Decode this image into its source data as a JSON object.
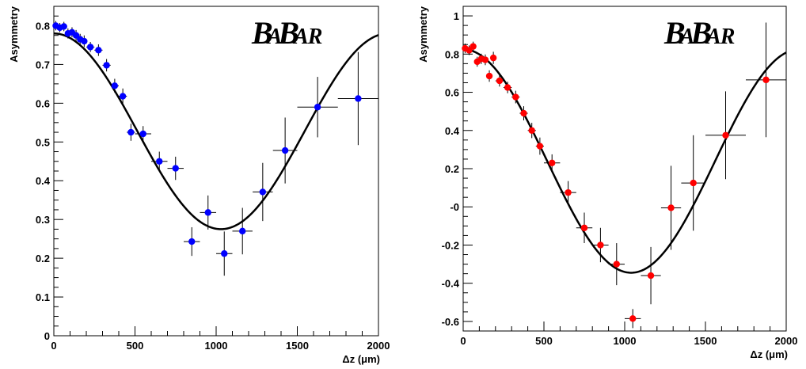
{
  "chart_data": [
    {
      "type": "scatter",
      "logo": "BABAR",
      "logo_parts": [
        "B",
        "A",
        "B",
        "A",
        "R"
      ],
      "xlabel": "Δz (μm)",
      "ylabel": "Asymmetry",
      "xlim": [
        0,
        2000
      ],
      "ylim": [
        0,
        0.85
      ],
      "x_ticks": [
        0,
        500,
        1000,
        1500,
        2000
      ],
      "y_ticks": [
        0,
        0.1,
        0.2,
        0.3,
        0.4,
        0.5,
        0.6,
        0.7,
        0.8
      ],
      "x_tick_labels": [
        "0",
        "500",
        "1000",
        "1500",
        "2000"
      ],
      "y_tick_labels": [
        "0",
        "0.1",
        "0.2",
        "0.3",
        "0.4",
        "0.5",
        "0.6",
        "0.7",
        "0.8"
      ],
      "marker_color": "#0000ff",
      "fit_curve": {
        "offset": 0.5275,
        "amplitude": 0.2525,
        "period": 2060,
        "color": "#000000"
      },
      "points": [
        {
          "x": 12,
          "y": 0.8,
          "xerr": 12,
          "yerr": 0.012
        },
        {
          "x": 37,
          "y": 0.795,
          "xerr": 12,
          "yerr": 0.012
        },
        {
          "x": 62,
          "y": 0.798,
          "xerr": 12,
          "yerr": 0.012
        },
        {
          "x": 87,
          "y": 0.78,
          "xerr": 12,
          "yerr": 0.013
        },
        {
          "x": 112,
          "y": 0.783,
          "xerr": 12,
          "yerr": 0.013
        },
        {
          "x": 137,
          "y": 0.775,
          "xerr": 12,
          "yerr": 0.014
        },
        {
          "x": 162,
          "y": 0.765,
          "xerr": 12,
          "yerr": 0.014
        },
        {
          "x": 187,
          "y": 0.76,
          "xerr": 12,
          "yerr": 0.015
        },
        {
          "x": 225,
          "y": 0.745,
          "xerr": 25,
          "yerr": 0.013
        },
        {
          "x": 275,
          "y": 0.737,
          "xerr": 25,
          "yerr": 0.015
        },
        {
          "x": 325,
          "y": 0.698,
          "xerr": 25,
          "yerr": 0.016
        },
        {
          "x": 375,
          "y": 0.645,
          "xerr": 25,
          "yerr": 0.018
        },
        {
          "x": 425,
          "y": 0.618,
          "xerr": 25,
          "yerr": 0.02
        },
        {
          "x": 475,
          "y": 0.525,
          "xerr": 25,
          "yerr": 0.022
        },
        {
          "x": 550,
          "y": 0.521,
          "xerr": 50,
          "yerr": 0.02
        },
        {
          "x": 650,
          "y": 0.45,
          "xerr": 50,
          "yerr": 0.025
        },
        {
          "x": 750,
          "y": 0.432,
          "xerr": 50,
          "yerr": 0.03
        },
        {
          "x": 850,
          "y": 0.243,
          "xerr": 50,
          "yerr": 0.037
        },
        {
          "x": 950,
          "y": 0.318,
          "xerr": 50,
          "yerr": 0.044
        },
        {
          "x": 1050,
          "y": 0.212,
          "xerr": 50,
          "yerr": 0.057
        },
        {
          "x": 1162,
          "y": 0.27,
          "xerr": 62,
          "yerr": 0.06
        },
        {
          "x": 1287,
          "y": 0.371,
          "xerr": 62,
          "yerr": 0.075
        },
        {
          "x": 1425,
          "y": 0.478,
          "xerr": 75,
          "yerr": 0.085
        },
        {
          "x": 1625,
          "y": 0.59,
          "xerr": 125,
          "yerr": 0.078
        },
        {
          "x": 1875,
          "y": 0.612,
          "xerr": 125,
          "yerr": 0.12
        }
      ]
    },
    {
      "type": "scatter",
      "logo": "BABAR",
      "logo_parts": [
        "B",
        "A",
        "B",
        "A",
        "R"
      ],
      "xlabel": "Δz (μm)",
      "ylabel": "Asymmetry",
      "xlim": [
        0,
        2000
      ],
      "ylim": [
        -0.65,
        1.05
      ],
      "x_ticks": [
        0,
        500,
        1000,
        1500,
        2000
      ],
      "y_ticks": [
        -0.6,
        -0.4,
        -0.2,
        0,
        0.2,
        0.4,
        0.6,
        0.8,
        1
      ],
      "x_tick_labels": [
        "0",
        "500",
        "1000",
        "1500",
        "2000"
      ],
      "y_tick_labels": [
        "-0.6",
        "-0.4",
        "-0.2",
        "-0",
        "0.2",
        "0.4",
        "0.6",
        "0.8",
        "1"
      ],
      "marker_color": "#ff0000",
      "fit_curve": {
        "offset": 0.24,
        "amplitude": 0.585,
        "period": 2080,
        "color": "#000000"
      },
      "points": [
        {
          "x": 12,
          "y": 0.83,
          "xerr": 12,
          "yerr": 0.025
        },
        {
          "x": 37,
          "y": 0.82,
          "xerr": 12,
          "yerr": 0.025
        },
        {
          "x": 62,
          "y": 0.84,
          "xerr": 12,
          "yerr": 0.025
        },
        {
          "x": 87,
          "y": 0.76,
          "xerr": 12,
          "yerr": 0.026
        },
        {
          "x": 112,
          "y": 0.775,
          "xerr": 12,
          "yerr": 0.027
        },
        {
          "x": 137,
          "y": 0.77,
          "xerr": 12,
          "yerr": 0.028
        },
        {
          "x": 162,
          "y": 0.685,
          "xerr": 12,
          "yerr": 0.03
        },
        {
          "x": 187,
          "y": 0.78,
          "xerr": 12,
          "yerr": 0.032
        },
        {
          "x": 225,
          "y": 0.66,
          "xerr": 25,
          "yerr": 0.03
        },
        {
          "x": 275,
          "y": 0.625,
          "xerr": 25,
          "yerr": 0.03
        },
        {
          "x": 325,
          "y": 0.575,
          "xerr": 25,
          "yerr": 0.033
        },
        {
          "x": 375,
          "y": 0.49,
          "xerr": 25,
          "yerr": 0.037
        },
        {
          "x": 425,
          "y": 0.4,
          "xerr": 25,
          "yerr": 0.04
        },
        {
          "x": 475,
          "y": 0.318,
          "xerr": 25,
          "yerr": 0.045
        },
        {
          "x": 550,
          "y": 0.23,
          "xerr": 50,
          "yerr": 0.045
        },
        {
          "x": 650,
          "y": 0.075,
          "xerr": 50,
          "yerr": 0.06
        },
        {
          "x": 750,
          "y": -0.11,
          "xerr": 50,
          "yerr": 0.08
        },
        {
          "x": 850,
          "y": -0.2,
          "xerr": 50,
          "yerr": 0.09
        },
        {
          "x": 950,
          "y": -0.3,
          "xerr": 50,
          "yerr": 0.11
        },
        {
          "x": 1050,
          "y": -0.585,
          "xerr": 50,
          "yerr": 0.05
        },
        {
          "x": 1162,
          "y": -0.36,
          "xerr": 62,
          "yerr": 0.15
        },
        {
          "x": 1287,
          "y": -0.005,
          "xerr": 62,
          "yerr": 0.22
        },
        {
          "x": 1425,
          "y": 0.125,
          "xerr": 75,
          "yerr": 0.25
        },
        {
          "x": 1625,
          "y": 0.375,
          "xerr": 125,
          "yerr": 0.23
        },
        {
          "x": 1875,
          "y": 0.665,
          "xerr": 125,
          "yerr": 0.3
        }
      ]
    }
  ]
}
